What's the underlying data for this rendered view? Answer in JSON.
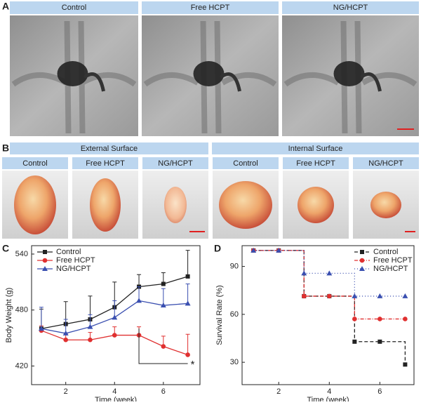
{
  "panels": {
    "a": {
      "label": "A",
      "columns": [
        "Control",
        "Free HCPT",
        "NG/HCPT"
      ]
    },
    "b": {
      "label": "B",
      "groups": [
        "External Surface",
        "Internal Surface"
      ],
      "columns": [
        "Control",
        "Free HCPT",
        "NG/HCPT",
        "Control",
        "Free HCPT",
        "NG/HCPT"
      ]
    },
    "c": {
      "label": "C"
    },
    "d": {
      "label": "D"
    }
  },
  "chart_data": [
    {
      "type": "line",
      "xlabel": "Time (week)",
      "ylabel": "Body Weight (g)",
      "x": [
        1,
        2,
        3,
        4,
        5,
        6,
        7
      ],
      "xlim": [
        0.6,
        7.5
      ],
      "xticks": [
        2,
        4,
        6
      ],
      "ylim": [
        400,
        549
      ],
      "yticks": [
        420,
        480,
        540
      ],
      "legend": "upper left",
      "series": [
        {
          "name": "Control",
          "color": "#222222",
          "marker": "square",
          "values": [
            460,
            465,
            470,
            483,
            505,
            508,
            516
          ],
          "errors": [
            21,
            24,
            25,
            27,
            13,
            12,
            28
          ]
        },
        {
          "name": "Free HCPT",
          "color": "#e03030",
          "marker": "circle",
          "values": [
            458,
            448,
            448,
            453,
            453,
            441,
            432
          ],
          "errors": [
            5,
            7,
            8,
            9,
            9,
            11,
            22
          ]
        },
        {
          "name": "NG/HCPT",
          "color": "#3a4fb0",
          "marker": "triangle",
          "values": [
            460,
            455,
            462,
            472,
            490,
            485,
            487
          ],
          "errors": [
            23,
            15,
            13,
            18,
            15,
            18,
            21
          ]
        }
      ],
      "annotation": {
        "text": "*",
        "x": [
          5,
          7
        ]
      }
    },
    {
      "type": "step",
      "xlabel": "Time (week)",
      "ylabel": "Survival Rate (%)",
      "x": [
        1,
        2,
        3,
        4,
        5,
        6,
        7
      ],
      "xlim": [
        0.55,
        7.35
      ],
      "xticks": [
        2,
        4,
        6
      ],
      "ylim": [
        16,
        103
      ],
      "yticks": [
        30,
        60,
        90
      ],
      "legend": "upper right",
      "series": [
        {
          "name": "Control",
          "color": "#222222",
          "marker": "square",
          "dash": "5,3",
          "values": [
            100,
            100,
            71.4,
            71.4,
            42.9,
            42.9,
            28.6
          ]
        },
        {
          "name": "Free HCPT",
          "color": "#e03030",
          "marker": "circle",
          "dash": "5,2,1,2",
          "values": [
            100,
            100,
            71.4,
            71.4,
            57.1,
            57.1,
            57.1
          ]
        },
        {
          "name": "NG/HCPT",
          "color": "#3a4fb0",
          "marker": "triangle",
          "dash": "1,3",
          "values": [
            100,
            100,
            85.7,
            85.7,
            71.4,
            71.4,
            71.4
          ]
        }
      ]
    }
  ]
}
